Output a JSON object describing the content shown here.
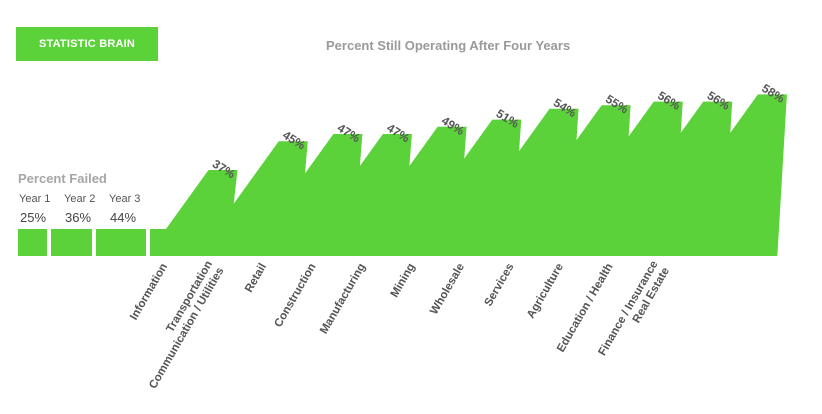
{
  "brand": {
    "label": "STATISTIC BRAIN"
  },
  "chart_data": {
    "type": "bar",
    "title": "Percent Still Operating After Four Years",
    "colors": {
      "bar": "#5cd23a",
      "title": "#9a9a9a",
      "label": "#555555"
    },
    "failed": {
      "heading": "Percent Failed",
      "years": [
        {
          "label": "Year 1",
          "value": "25%"
        },
        {
          "label": "Year 2",
          "value": "36%"
        },
        {
          "label": "Year 3",
          "value": "44%"
        }
      ]
    },
    "categories": [
      "Information",
      "Transportation\nCommunication / Utilities",
      "Retail",
      "Construction",
      "Manufacturing",
      "Mining",
      "Wholesale",
      "Services",
      "Agriculture",
      "Education / Health",
      "Finance / Insurance\nReal Estate"
    ],
    "values": [
      37,
      45,
      47,
      47,
      49,
      51,
      54,
      55,
      56,
      56,
      58
    ],
    "value_labels": [
      "37%",
      "45%",
      "47%",
      "47%",
      "49%",
      "51%",
      "54%",
      "55%",
      "56%",
      "56%",
      "58%"
    ]
  }
}
